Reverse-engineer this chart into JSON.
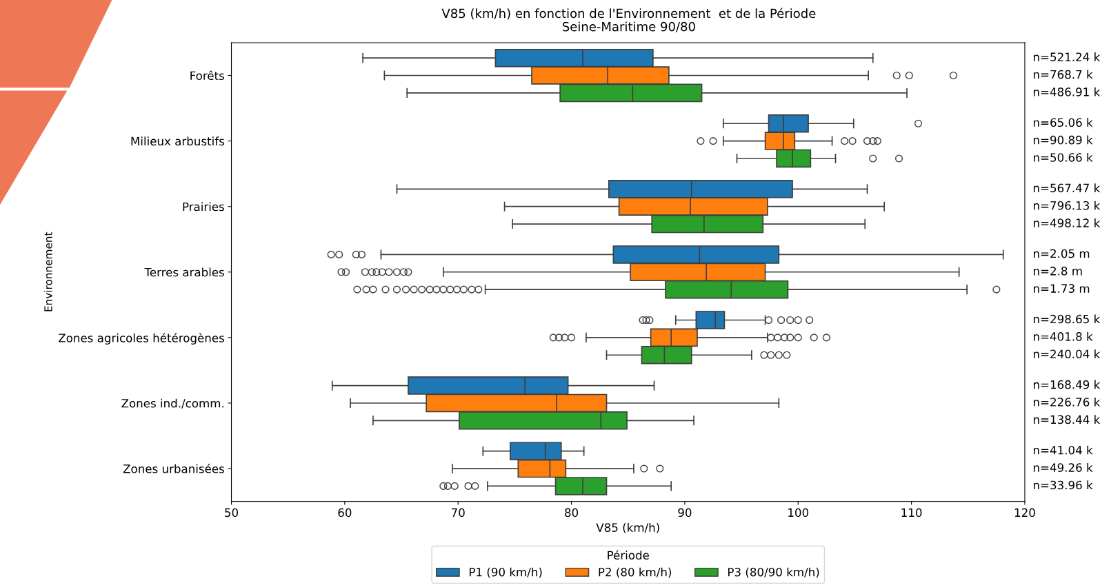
{
  "chart_data": {
    "type": "box",
    "orientation": "horizontal",
    "title": "V85 (km/h) en fonction de l'Environnement  et de la Période",
    "subtitle": "Seine-Maritime 90/80",
    "xlabel": "V85 (km/h)",
    "ylabel": "Environnement",
    "legend_title": "Période",
    "categories": [
      "Forêts",
      "Milieux arbustifs",
      "Prairies",
      "Terres arables",
      "Zones agricoles hétérogènes",
      "Zones ind./comm.",
      "Zones urbanisées"
    ],
    "xlim": [
      50,
      120
    ],
    "xticks": [
      50,
      60,
      70,
      80,
      90,
      100,
      110,
      120
    ],
    "grid": false,
    "legend": "bottom",
    "series": [
      {
        "name": "P1 (90 km/h)",
        "color": "#1f77b4",
        "boxes": [
          {
            "low": 61.6,
            "q1": 73.3,
            "median": 81.0,
            "q3": 87.2,
            "high": 106.6
          },
          {
            "low": 93.4,
            "q1": 97.4,
            "median": 98.7,
            "q3": 100.9,
            "high": 104.9,
            "outliers": [
              110.6
            ]
          },
          {
            "low": 64.6,
            "q1": 83.3,
            "median": 90.6,
            "q3": 99.5,
            "high": 106.1
          },
          {
            "low": 63.2,
            "q1": 83.7,
            "median": 91.3,
            "q3": 98.3,
            "high": 118.1,
            "outliers": [
              58.8,
              59.5,
              61.0,
              61.5
            ]
          },
          {
            "low": 89.2,
            "q1": 91.0,
            "median": 92.7,
            "q3": 93.5,
            "high": 97.1,
            "outliers": [
              86.3,
              86.6,
              86.9,
              97.4,
              98.5,
              99.3,
              100.0,
              101.0
            ]
          },
          {
            "low": 58.9,
            "q1": 65.6,
            "median": 75.9,
            "q3": 79.7,
            "high": 87.3
          },
          {
            "low": 72.2,
            "q1": 74.6,
            "median": 77.7,
            "q3": 79.1,
            "high": 81.1
          }
        ]
      },
      {
        "name": "P2 (80 km/h)",
        "color": "#ff7f0e",
        "boxes": [
          {
            "low": 63.5,
            "q1": 76.5,
            "median": 83.2,
            "q3": 88.6,
            "high": 106.2,
            "outliers": [
              108.7,
              109.8,
              113.7
            ]
          },
          {
            "low": 93.4,
            "q1": 97.1,
            "median": 98.7,
            "q3": 99.7,
            "high": 103.0,
            "outliers": [
              91.4,
              92.5,
              104.1,
              104.8,
              106.1,
              106.6,
              107.0
            ]
          },
          {
            "low": 74.1,
            "q1": 84.2,
            "median": 90.5,
            "q3": 97.3,
            "high": 107.6
          },
          {
            "low": 68.7,
            "q1": 85.2,
            "median": 91.9,
            "q3": 97.1,
            "high": 114.2,
            "outliers": [
              59.7,
              60.1,
              61.8,
              62.4,
              62.8,
              63.3,
              63.9,
              64.6,
              65.2,
              65.6
            ]
          },
          {
            "low": 81.3,
            "q1": 87.0,
            "median": 88.8,
            "q3": 91.1,
            "high": 97.3,
            "outliers": [
              78.4,
              78.9,
              79.4,
              80.0,
              97.6,
              98.2,
              98.8,
              99.3,
              100.0,
              101.4,
              102.5
            ]
          },
          {
            "low": 60.5,
            "q1": 67.2,
            "median": 78.7,
            "q3": 83.1,
            "high": 98.3
          },
          {
            "low": 69.5,
            "q1": 75.3,
            "median": 78.1,
            "q3": 79.5,
            "high": 85.5,
            "outliers": [
              86.4,
              87.8
            ]
          }
        ]
      },
      {
        "name": "P3 (80/90 km/h)",
        "color": "#2ca02c",
        "boxes": [
          {
            "low": 65.5,
            "q1": 79.0,
            "median": 85.4,
            "q3": 91.5,
            "high": 109.6
          },
          {
            "low": 94.6,
            "q1": 98.1,
            "median": 99.5,
            "q3": 101.1,
            "high": 103.3,
            "outliers": [
              106.6,
              108.9
            ]
          },
          {
            "low": 74.8,
            "q1": 87.1,
            "median": 91.7,
            "q3": 96.9,
            "high": 105.9
          },
          {
            "low": 72.4,
            "q1": 88.3,
            "median": 94.1,
            "q3": 99.1,
            "high": 114.9,
            "outliers": [
              61.1,
              61.9,
              62.5,
              63.6,
              64.6,
              65.4,
              66.1,
              66.8,
              67.5,
              68.1,
              68.7,
              69.3,
              69.9,
              70.5,
              71.2,
              71.8,
              117.5
            ]
          },
          {
            "low": 83.1,
            "q1": 86.2,
            "median": 88.2,
            "q3": 90.6,
            "high": 95.9,
            "outliers": [
              97.0,
              97.6,
              98.3,
              99.0
            ]
          },
          {
            "low": 62.5,
            "q1": 70.1,
            "median": 82.6,
            "q3": 84.9,
            "high": 90.8
          },
          {
            "low": 72.6,
            "q1": 78.6,
            "median": 81.0,
            "q3": 83.1,
            "high": 88.8,
            "outliers": [
              68.7,
              69.1,
              69.7,
              70.9,
              71.5
            ]
          }
        ]
      }
    ],
    "annotations": [
      "n=521.24 k",
      "n=768.7 k",
      "n=486.91 k",
      "n=65.06 k",
      "n=90.89 k",
      "n=50.66 k",
      "n=567.47 k",
      "n=796.13 k",
      "n=498.12 k",
      "n=2.05 m",
      "n=2.8 m",
      "n=1.73 m",
      "n=298.65 k",
      "n=401.8 k",
      "n=240.04 k",
      "n=168.49 k",
      "n=226.76 k",
      "n=138.44 k",
      "n=41.04 k",
      "n=49.26 k",
      "n=33.96 k"
    ]
  }
}
